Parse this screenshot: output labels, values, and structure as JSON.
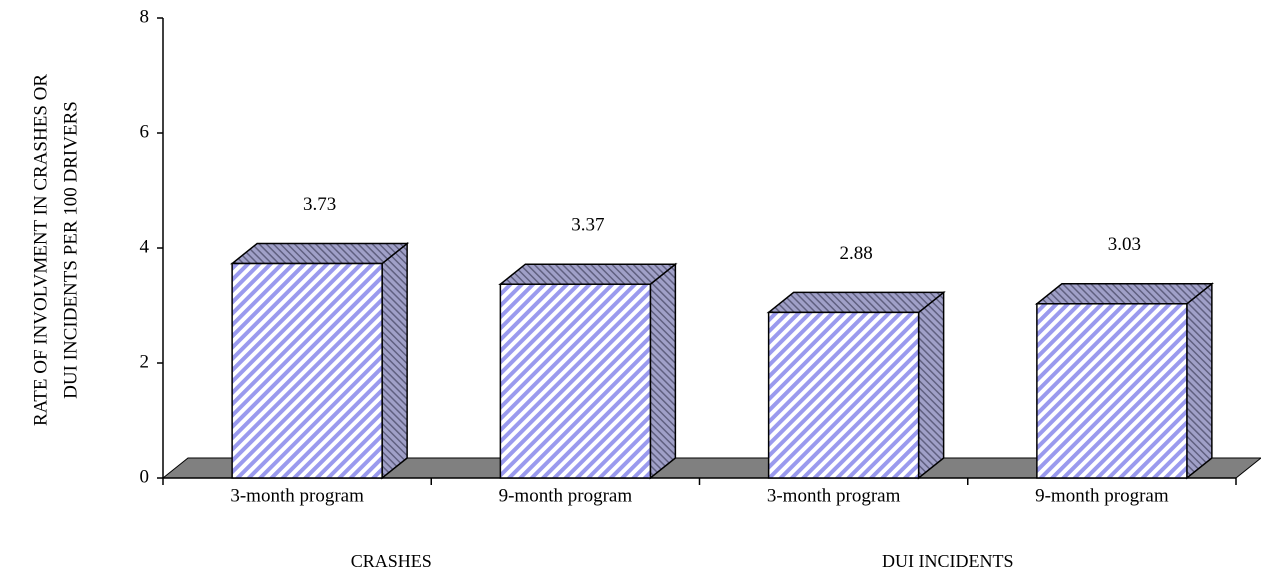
{
  "chart_data": {
    "type": "bar3d",
    "ylabel": [
      "RATE OF INVOLVMENT IN CRASHES OR",
      "DUI INCIDENTS PER 100 DRIVERS"
    ],
    "categories": [
      "3-month program",
      "9-month program",
      "3-month program",
      "9-month program"
    ],
    "groups": [
      "CRASHES",
      "DUI INCIDENTS"
    ],
    "values": [
      3.73,
      3.37,
      2.88,
      3.03
    ],
    "color": "#9a9aee",
    "ylim": [
      0,
      8
    ],
    "yticks": [
      0,
      2,
      4,
      6,
      8
    ]
  }
}
